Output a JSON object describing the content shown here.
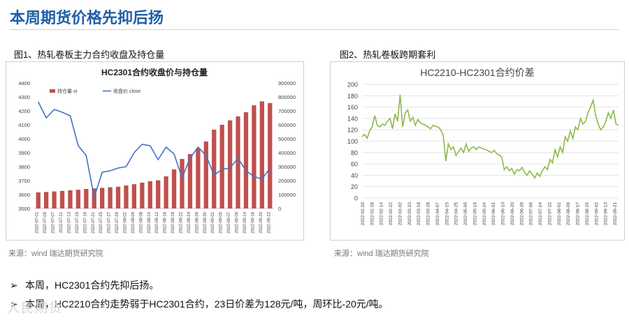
{
  "header": {
    "title": "本周期货价格先抑后扬"
  },
  "figures": [
    {
      "caption": "图1、热轧卷板主力合约收盘及持仓量",
      "source": "来源：wind   瑞达期货研究院"
    },
    {
      "caption": "图2、热轧卷板跨期套利",
      "source": "来源：wind   瑞达期货研究院"
    }
  ],
  "bullets": [
    {
      "marker": "➢",
      "text": "本周，HC2301合约先抑后扬。"
    },
    {
      "marker": "➢",
      "text": "本周，HC2210合约走势弱于HC2301合约，23日价差为128元/吨，周环比-20元/吨。"
    }
  ],
  "watermark": "人民期货",
  "chart_data": [
    {
      "type": "bar",
      "title": "HC2301合约收盘价与持仓量",
      "categories": [
        "2022-07-01",
        "2022-07-05",
        "2022-07-07",
        "2022-07-11",
        "2022-07-13",
        "2022-07-15",
        "2022-07-19",
        "2022-07-21",
        "2022-07-25",
        "2022-07-27",
        "2022-07-29",
        "2022-08-02",
        "2022-08-04",
        "2022-08-08",
        "2022-08-10",
        "2022-08-12",
        "2022-08-16",
        "2022-08-18",
        "2022-08-22",
        "2022-08-24",
        "2022-08-26",
        "2022-08-30",
        "2022-09-01",
        "2022-09-05",
        "2022-09-07",
        "2022-09-09",
        "2022-09-14",
        "2022-09-16",
        "2022-09-20",
        "2022-09-22"
      ],
      "series": [
        {
          "name": "持仓量 oi",
          "axis": "right",
          "color": "#c0504d",
          "values": [
            115000,
            118000,
            122000,
            126000,
            130000,
            134000,
            140000,
            144000,
            148000,
            152000,
            156000,
            165000,
            174000,
            185000,
            195000,
            202000,
            230000,
            280000,
            355000,
            390000,
            430000,
            480000,
            565000,
            600000,
            632000,
            660000,
            690000,
            740000,
            768000,
            756000
          ]
        },
        {
          "name": "收盘价 close",
          "axis": "left",
          "color": "#4472c4",
          "values": [
            4265,
            4150,
            4210,
            4190,
            4165,
            3950,
            3880,
            3580,
            3760,
            3770,
            3790,
            3800,
            3900,
            3960,
            3950,
            3850,
            3940,
            3890,
            3720,
            3860,
            3940,
            3880,
            3740,
            3780,
            3790,
            3860,
            3770,
            3730,
            3710,
            3790
          ]
        }
      ],
      "ylim_left": [
        3500,
        4400
      ],
      "yticks_left": [
        3500,
        3600,
        3700,
        3800,
        3900,
        4000,
        4100,
        4200,
        4300,
        4400
      ],
      "ylim_right": [
        0,
        900000
      ],
      "yticks_right": [
        0,
        100000,
        200000,
        300000,
        400000,
        500000,
        600000,
        700000,
        800000,
        900000
      ],
      "legend_position": "top"
    },
    {
      "type": "line",
      "title": "HC2210-HC2301合约价差",
      "x_ticks": [
        "2022-01-20",
        "2022-01-28",
        "2022-02-14",
        "2022-02-22",
        "2022-03-02",
        "2022-03-10",
        "2022-03-18",
        "2022-03-28",
        "2022-04-07",
        "2022-04-15",
        "2022-04-25",
        "2022-05-05",
        "2022-05-16",
        "2022-05-24",
        "2022-06-01",
        "2022-06-10",
        "2022-06-20",
        "2022-06-28",
        "2022-07-06",
        "2022-07-14",
        "2022-07-22",
        "2022-08-01",
        "2022-08-09",
        "2022-08-17",
        "2022-08-25",
        "2022-09-02",
        "2022-09-13",
        "2022-09-21"
      ],
      "series": [
        {
          "name": "价差",
          "color": "#8db94a",
          "values": [
            108,
            112,
            105,
            118,
            125,
            145,
            128,
            125,
            130,
            128,
            135,
            140,
            122,
            148,
            135,
            182,
            125,
            150,
            155,
            135,
            142,
            128,
            138,
            132,
            130,
            128,
            125,
            122,
            128,
            126,
            125,
            120,
            110,
            65,
            95,
            85,
            90,
            75,
            82,
            88,
            80,
            95,
            82,
            88,
            90,
            85,
            90,
            88,
            86,
            85,
            82,
            80,
            84,
            78,
            76,
            72,
            50,
            55,
            48,
            52,
            42,
            50,
            48,
            54,
            45,
            40,
            48,
            42,
            35,
            44,
            38,
            48,
            55,
            50,
            68,
            62,
            85,
            72,
            90,
            80,
            108,
            100,
            118,
            105,
            125,
            120,
            140,
            130,
            135,
            150,
            160,
            172,
            145,
            130,
            120,
            125,
            135,
            150,
            140,
            155,
            130,
            128
          ]
        }
      ],
      "ylim": [
        0,
        200
      ],
      "yticks": [
        0,
        20,
        40,
        60,
        80,
        100,
        120,
        140,
        160,
        180,
        200
      ]
    }
  ]
}
